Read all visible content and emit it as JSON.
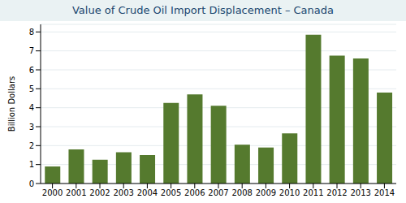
{
  "chart_data": {
    "type": "bar",
    "title": "Value of Crude Oil Import Displacement – Canada",
    "y_label": "Billion Dollars",
    "categories": [
      "2000",
      "2001",
      "2002",
      "2003",
      "2004",
      "2005",
      "2006",
      "2007",
      "2008",
      "2009",
      "2010",
      "2011",
      "2012",
      "2013",
      "2014"
    ],
    "values": [
      0.9,
      1.8,
      1.25,
      1.65,
      1.5,
      4.25,
      4.7,
      4.1,
      2.05,
      1.9,
      2.65,
      7.85,
      6.75,
      6.6,
      4.8
    ],
    "color": "#557a2e",
    "ylim": [
      0,
      8.4
    ],
    "yticks": [
      0,
      1,
      2,
      3,
      4,
      5,
      6,
      7,
      8
    ],
    "grid": true
  }
}
